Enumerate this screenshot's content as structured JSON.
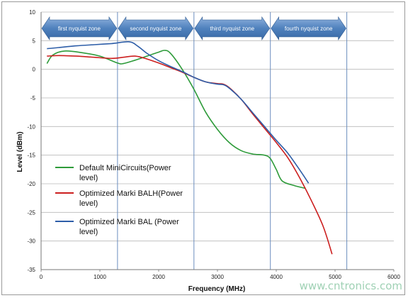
{
  "chart_data": {
    "type": "line",
    "title": "",
    "xlabel": "Frequency (MHz)",
    "ylabel": "Level (dBm)",
    "xlim": [
      0,
      6000
    ],
    "ylim": [
      -35,
      10
    ],
    "x_ticks": [
      0,
      1000,
      2000,
      3000,
      4000,
      5000,
      6000
    ],
    "y_ticks": [
      10,
      5,
      0,
      -5,
      -10,
      -15,
      -20,
      -25,
      -30,
      -35
    ],
    "grid": "horizontal",
    "zone_boundaries": [
      1300,
      2600,
      3900,
      5200
    ],
    "zones": [
      {
        "label": "first nyquist zone",
        "x_start": 0,
        "x_end": 1300
      },
      {
        "label": "second nyquist zone",
        "x_start": 1300,
        "x_end": 2600
      },
      {
        "label": "third nyquist zone",
        "x_start": 2600,
        "x_end": 3900
      },
      {
        "label": "fourth nyquist zone",
        "x_start": 3900,
        "x_end": 5200
      }
    ],
    "legend_position": "left",
    "series": [
      {
        "name": "Default MiniCircuits(Power level)",
        "color": "#2e9b3a",
        "x": [
          100,
          200,
          400,
          700,
          1000,
          1300,
          1400,
          1600,
          1800,
          2000,
          2100,
          2200,
          2400,
          2600,
          2800,
          3000,
          3200,
          3400,
          3600,
          3800,
          3900,
          4000,
          4100,
          4300,
          4500
        ],
        "y": [
          1.0,
          2.5,
          3.2,
          2.9,
          2.3,
          1.1,
          1.0,
          1.6,
          2.3,
          3.0,
          3.3,
          2.8,
          0.0,
          -3.5,
          -7.5,
          -10.5,
          -12.8,
          -14.2,
          -14.8,
          -15.0,
          -15.6,
          -17.5,
          -19.5,
          -20.3,
          -20.8
        ]
      },
      {
        "name": "Optimized Marki BALH(Power level)",
        "color": "#cc1f1f",
        "x": [
          100,
          300,
          600,
          900,
          1200,
          1400,
          1600,
          1800,
          2000,
          2200,
          2400,
          2600,
          2800,
          3000,
          3100,
          3200,
          3400,
          3600,
          3800,
          4000,
          4200,
          4400,
          4600,
          4800,
          4950
        ],
        "y": [
          2.3,
          2.4,
          2.3,
          2.1,
          1.9,
          2.1,
          2.3,
          1.8,
          1.1,
          0.3,
          -0.5,
          -1.4,
          -2.2,
          -2.5,
          -2.6,
          -3.2,
          -5.2,
          -7.8,
          -10.3,
          -12.8,
          -15.5,
          -19.0,
          -23.0,
          -27.5,
          -32.3
        ]
      },
      {
        "name": "Optimized Marki BAL (Power level)",
        "color": "#2e5ea8",
        "x": [
          100,
          300,
          600,
          900,
          1200,
          1500,
          1650,
          1800,
          2000,
          2200,
          2400,
          2600,
          2800,
          3000,
          3100,
          3200,
          3400,
          3600,
          3800,
          4000,
          4200,
          4400,
          4550
        ],
        "y": [
          3.6,
          3.8,
          4.1,
          4.3,
          4.5,
          4.8,
          4.0,
          2.8,
          1.5,
          0.5,
          -0.4,
          -1.4,
          -2.2,
          -2.6,
          -2.7,
          -3.3,
          -5.2,
          -7.6,
          -10.0,
          -12.4,
          -14.7,
          -17.6,
          -19.9
        ]
      }
    ]
  },
  "watermark": "www.cntronics.com"
}
